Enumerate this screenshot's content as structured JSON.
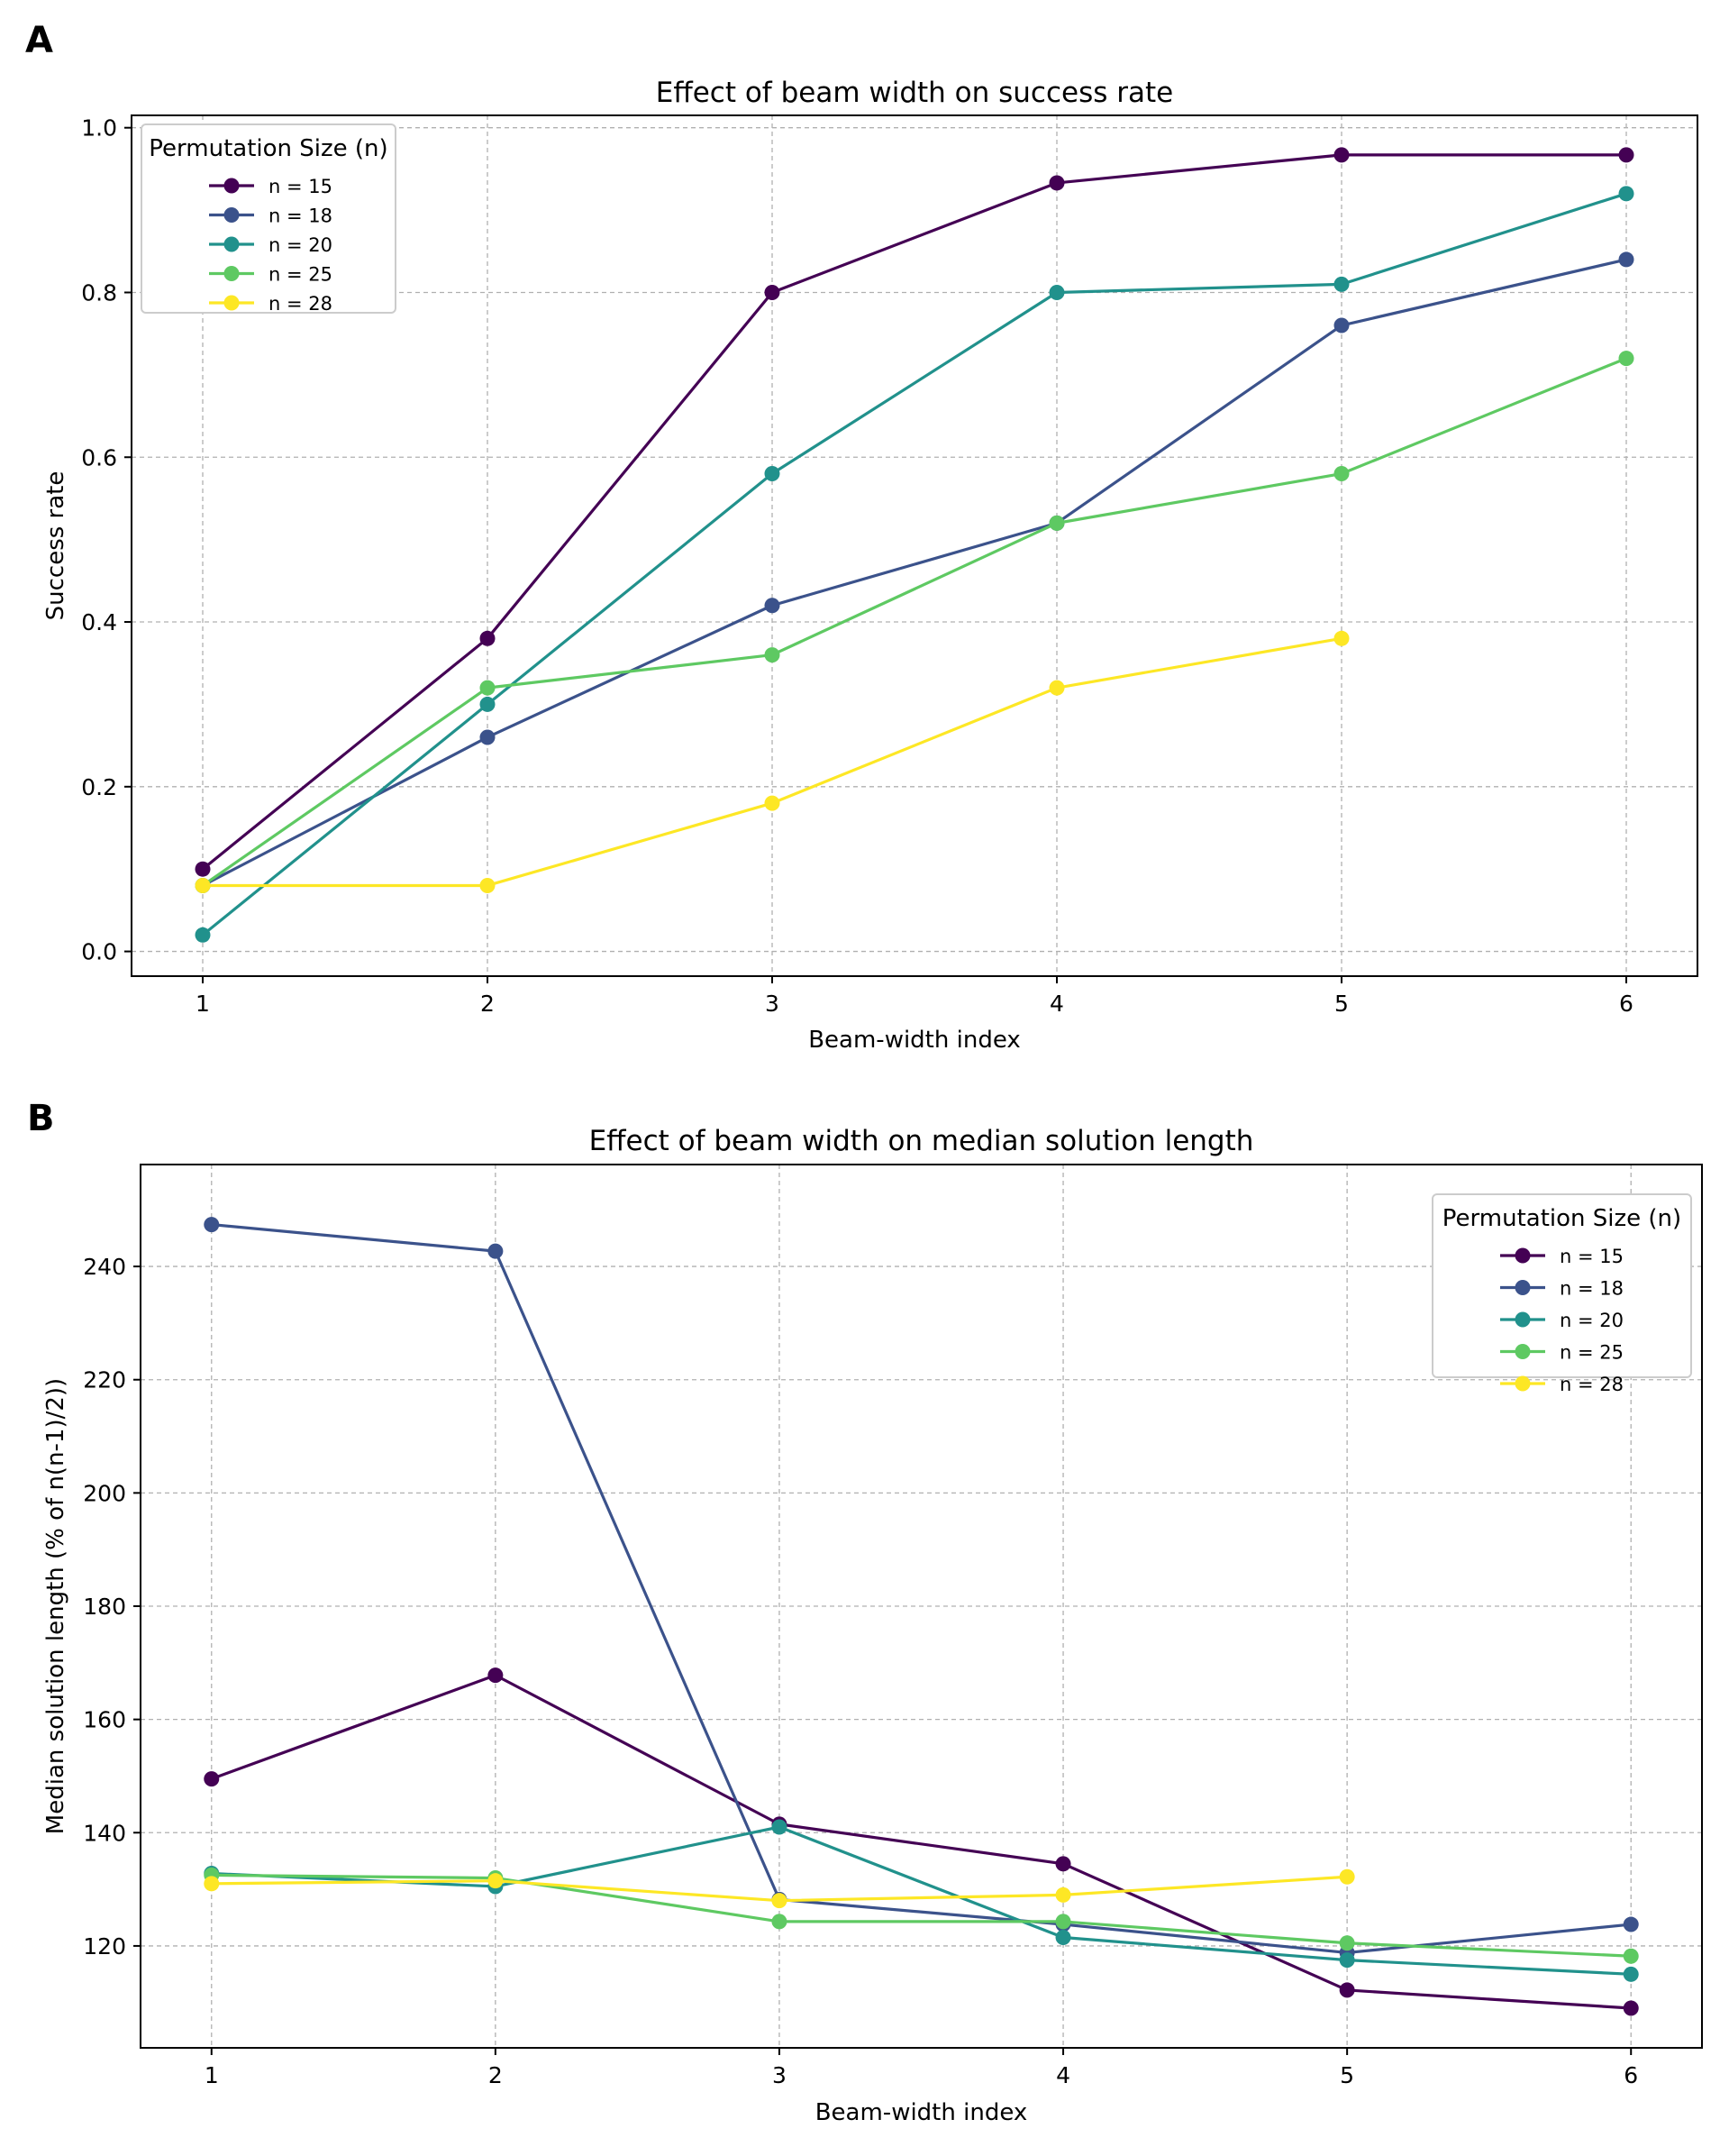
{
  "panels": {
    "a_label": "A",
    "b_label": "B"
  },
  "series_colors": {
    "n = 15": "#440154",
    "n = 18": "#3b528b",
    "n = 20": "#21918c",
    "n = 25": "#5ec962",
    "n = 28": "#fde725"
  },
  "chart_data": [
    {
      "type": "line",
      "title": "Effect of beam width on success rate",
      "xlabel": "Beam-width index",
      "ylabel": "Success rate",
      "x": [
        1,
        2,
        3,
        4,
        5,
        6
      ],
      "xticks": [
        1,
        2,
        3,
        4,
        5,
        6
      ],
      "yticks": [
        0.0,
        0.2,
        0.4,
        0.6,
        0.8,
        1.0
      ],
      "ytick_labels": [
        "0.0",
        "0.2",
        "0.4",
        "0.6",
        "0.8",
        "1.0"
      ],
      "xlim": [
        0.75,
        6.25
      ],
      "ylim": [
        -0.03,
        1.015
      ],
      "grid": true,
      "legend": {
        "title": "Permutation Size (n)",
        "location": "upper-left"
      },
      "series": [
        {
          "name": "n = 15",
          "values": [
            0.1,
            0.38,
            0.8,
            0.933,
            0.967,
            0.967
          ]
        },
        {
          "name": "n = 18",
          "values": [
            0.08,
            0.26,
            0.42,
            0.52,
            0.76,
            0.84
          ]
        },
        {
          "name": "n = 20",
          "values": [
            0.02,
            0.3,
            0.58,
            0.8,
            0.81,
            0.92
          ]
        },
        {
          "name": "n = 25",
          "values": [
            0.08,
            0.32,
            0.36,
            0.52,
            0.58,
            0.72
          ]
        },
        {
          "name": "n = 28",
          "values": [
            0.08,
            0.08,
            0.18,
            0.32,
            0.38,
            null
          ]
        }
      ]
    },
    {
      "type": "line",
      "title": "Effect of beam width on median solution length",
      "xlabel": "Beam-width index",
      "ylabel": "Median solution length (% of n(n-1)/2))",
      "x": [
        1,
        2,
        3,
        4,
        5,
        6
      ],
      "xticks": [
        1,
        2,
        3,
        4,
        5,
        6
      ],
      "yticks": [
        120,
        140,
        160,
        180,
        200,
        220,
        240
      ],
      "ytick_labels": [
        "120",
        "140",
        "160",
        "180",
        "200",
        "220",
        "240"
      ],
      "xlim": [
        0.75,
        6.25
      ],
      "ylim": [
        102,
        258
      ],
      "grid": true,
      "legend": {
        "title": "Permutation Size (n)",
        "location": "upper-right"
      },
      "series": [
        {
          "name": "n = 15",
          "values": [
            149.5,
            167.8,
            141.5,
            134.5,
            112.2,
            109.0
          ]
        },
        {
          "name": "n = 18",
          "values": [
            247.4,
            242.7,
            128.2,
            123.8,
            118.8,
            123.8
          ]
        },
        {
          "name": "n = 20",
          "values": [
            132.8,
            130.5,
            141.0,
            121.5,
            117.5,
            115.0
          ]
        },
        {
          "name": "n = 25",
          "values": [
            132.5,
            132.0,
            124.3,
            124.3,
            120.5,
            118.2
          ]
        },
        {
          "name": "n = 28",
          "values": [
            131.0,
            131.5,
            128.0,
            129.0,
            132.2,
            null
          ]
        }
      ]
    }
  ]
}
